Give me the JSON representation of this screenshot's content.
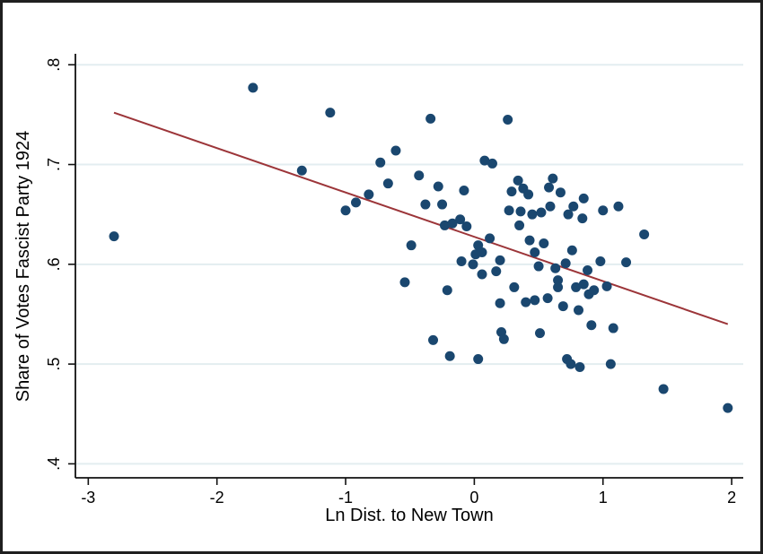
{
  "figure": {
    "description": "Stata-style scatter plot with linear fit line",
    "colors": {
      "marker": "#1a476f",
      "fit_line": "#9c3539",
      "gridline": "#e3edf0",
      "axis": "#111111",
      "background": "#ffffff",
      "frame": "#1f1f1f"
    }
  },
  "chart_data": {
    "type": "scatter",
    "title": "",
    "xlabel": "Ln Dist. to New Town",
    "ylabel": "Share of Votes Fascist Party 1924",
    "xlim": [
      -3.1,
      2.09
    ],
    "ylim": [
      0.386,
      0.811
    ],
    "xticks": [
      {
        "value": -3,
        "label": "-3"
      },
      {
        "value": -2,
        "label": "-2"
      },
      {
        "value": -1,
        "label": "-1"
      },
      {
        "value": 0,
        "label": "0"
      },
      {
        "value": 1,
        "label": "1"
      },
      {
        "value": 2,
        "label": "2"
      }
    ],
    "yticks": [
      {
        "value": 0.4,
        "label": ".4"
      },
      {
        "value": 0.5,
        "label": ".5"
      },
      {
        "value": 0.6,
        "label": ".6"
      },
      {
        "value": 0.7,
        "label": ".7"
      },
      {
        "value": 0.8,
        "label": ".8"
      }
    ],
    "grid": "horizontal",
    "legend": "none",
    "marker_radius": 5.5,
    "series": [
      {
        "name": "observations",
        "type": "scatter",
        "color": "#1a476f",
        "points": [
          [
            -2.8,
            0.628
          ],
          [
            -1.72,
            0.777
          ],
          [
            -1.34,
            0.694
          ],
          [
            -1.12,
            0.752
          ],
          [
            -1.0,
            0.654
          ],
          [
            -0.92,
            0.662
          ],
          [
            -0.82,
            0.67
          ],
          [
            -0.73,
            0.702
          ],
          [
            -0.67,
            0.681
          ],
          [
            -0.61,
            0.714
          ],
          [
            -0.54,
            0.582
          ],
          [
            -0.49,
            0.619
          ],
          [
            -0.43,
            0.689
          ],
          [
            -0.38,
            0.66
          ],
          [
            -0.34,
            0.746
          ],
          [
            -0.32,
            0.524
          ],
          [
            -0.28,
            0.678
          ],
          [
            -0.25,
            0.66
          ],
          [
            -0.23,
            0.639
          ],
          [
            -0.21,
            0.574
          ],
          [
            -0.19,
            0.508
          ],
          [
            -0.17,
            0.641
          ],
          [
            -0.11,
            0.645
          ],
          [
            -0.1,
            0.603
          ],
          [
            -0.08,
            0.674
          ],
          [
            -0.06,
            0.638
          ],
          [
            -0.01,
            0.6
          ],
          [
            0.01,
            0.61
          ],
          [
            0.03,
            0.619
          ],
          [
            0.03,
            0.505
          ],
          [
            0.06,
            0.612
          ],
          [
            0.06,
            0.59
          ],
          [
            0.08,
            0.704
          ],
          [
            0.12,
            0.626
          ],
          [
            0.14,
            0.701
          ],
          [
            0.17,
            0.593
          ],
          [
            0.2,
            0.604
          ],
          [
            0.2,
            0.561
          ],
          [
            0.21,
            0.532
          ],
          [
            0.23,
            0.525
          ],
          [
            0.26,
            0.745
          ],
          [
            0.27,
            0.654
          ],
          [
            0.29,
            0.673
          ],
          [
            0.31,
            0.577
          ],
          [
            0.34,
            0.684
          ],
          [
            0.35,
            0.639
          ],
          [
            0.36,
            0.653
          ],
          [
            0.38,
            0.676
          ],
          [
            0.4,
            0.562
          ],
          [
            0.42,
            0.67
          ],
          [
            0.43,
            0.624
          ],
          [
            0.45,
            0.65
          ],
          [
            0.47,
            0.612
          ],
          [
            0.47,
            0.564
          ],
          [
            0.5,
            0.598
          ],
          [
            0.51,
            0.531
          ],
          [
            0.52,
            0.652
          ],
          [
            0.54,
            0.621
          ],
          [
            0.57,
            0.566
          ],
          [
            0.58,
            0.677
          ],
          [
            0.59,
            0.658
          ],
          [
            0.61,
            0.686
          ],
          [
            0.63,
            0.596
          ],
          [
            0.65,
            0.584
          ],
          [
            0.65,
            0.577
          ],
          [
            0.67,
            0.672
          ],
          [
            0.69,
            0.558
          ],
          [
            0.71,
            0.601
          ],
          [
            0.72,
            0.505
          ],
          [
            0.73,
            0.65
          ],
          [
            0.75,
            0.5
          ],
          [
            0.76,
            0.614
          ],
          [
            0.77,
            0.658
          ],
          [
            0.79,
            0.577
          ],
          [
            0.81,
            0.554
          ],
          [
            0.82,
            0.497
          ],
          [
            0.84,
            0.646
          ],
          [
            0.85,
            0.666
          ],
          [
            0.85,
            0.58
          ],
          [
            0.88,
            0.594
          ],
          [
            0.89,
            0.57
          ],
          [
            0.91,
            0.539
          ],
          [
            0.93,
            0.574
          ],
          [
            0.98,
            0.603
          ],
          [
            1.0,
            0.654
          ],
          [
            1.03,
            0.578
          ],
          [
            1.06,
            0.5
          ],
          [
            1.08,
            0.536
          ],
          [
            1.12,
            0.658
          ],
          [
            1.18,
            0.602
          ],
          [
            1.32,
            0.63
          ],
          [
            1.47,
            0.475
          ],
          [
            1.97,
            0.456
          ]
        ]
      },
      {
        "name": "linear-fit",
        "type": "line",
        "color": "#9c3539",
        "points": [
          [
            -2.8,
            0.752
          ],
          [
            1.97,
            0.54
          ]
        ]
      }
    ]
  }
}
